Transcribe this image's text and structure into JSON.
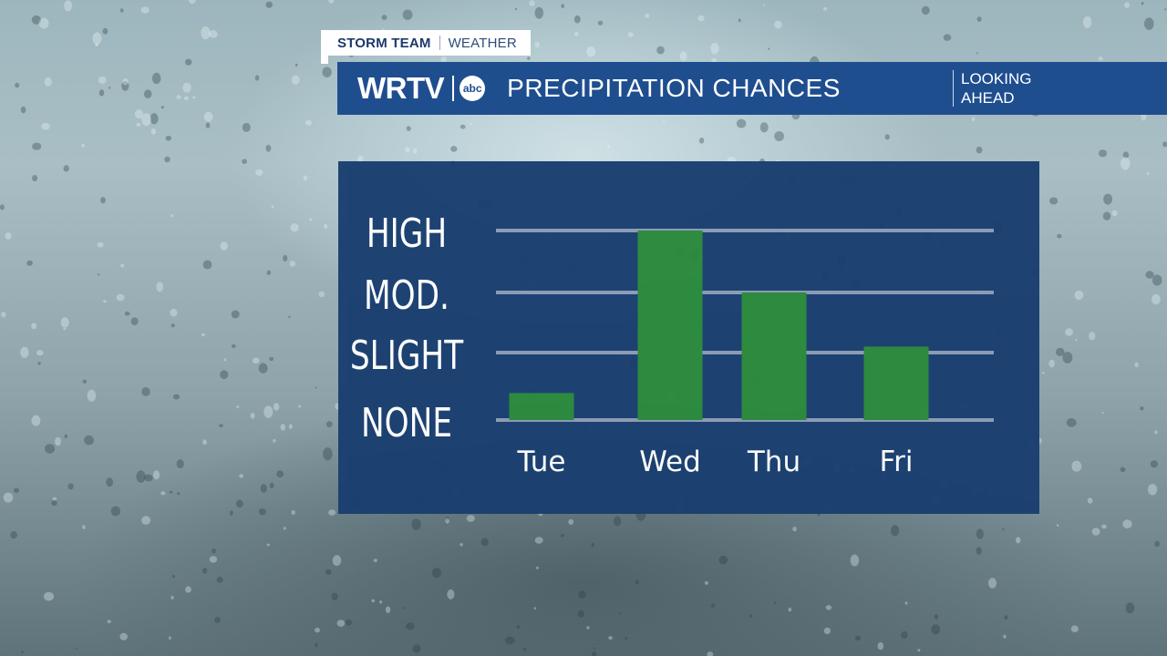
{
  "header": {
    "tag_team": "STORM TEAM",
    "tag_section": "WEATHER",
    "station": "WRTV",
    "network_logo": "abc",
    "title": "PRECIPITATION CHANCES",
    "subtitle_line1": "LOOKING",
    "subtitle_line2": "AHEAD"
  },
  "colors": {
    "banner": "#1f4e8f",
    "panel": "#1a3f70",
    "bar": "#2a8a3c",
    "gridline": "#8d9cb5",
    "text": "#ffffff"
  },
  "chart_data": {
    "type": "bar",
    "title": "PRECIPITATION CHANCES",
    "categories": [
      "Tue",
      "Wed",
      "Thu",
      "Fri"
    ],
    "values": [
      0.4,
      3.0,
      2.0,
      1.1
    ],
    "y_levels": [
      "NONE",
      "SLIGHT",
      "MOD.",
      "HIGH"
    ],
    "ylim": [
      0,
      3
    ],
    "grid": true,
    "legend": "none"
  }
}
